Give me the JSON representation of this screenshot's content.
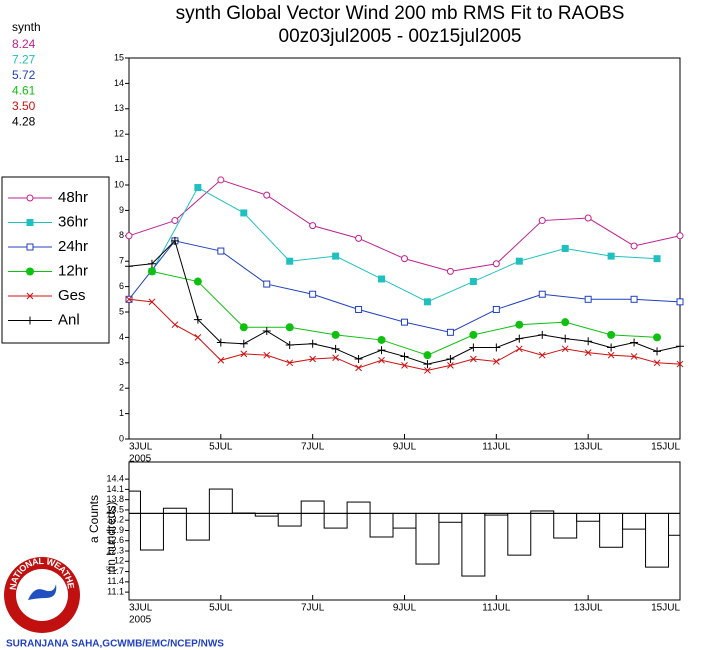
{
  "chart_data": [
    {
      "type": "line",
      "title": "synth Global Vector Wind 200 mb RMS Fit to RAOBS",
      "subtitle": "00z03jul2005 - 00z15jul2005",
      "stats_label": "synth",
      "xlim": [
        0,
        12
      ],
      "xticks": [
        {
          "value": 0,
          "label": "3JUL"
        },
        {
          "value": 2,
          "label": "5JUL"
        },
        {
          "value": 4,
          "label": "7JUL"
        },
        {
          "value": 6,
          "label": "9JUL"
        },
        {
          "value": 8,
          "label": "11JUL"
        },
        {
          "value": 10,
          "label": "13JUL"
        },
        {
          "value": 12,
          "label": "15JUL"
        }
      ],
      "x_year": "2005",
      "ylim": [
        0,
        15
      ],
      "yticks": [
        0,
        1,
        2,
        3,
        4,
        5,
        6,
        7,
        8,
        9,
        10,
        11,
        12,
        13,
        14,
        15
      ],
      "series": [
        {
          "name": "48hr",
          "color": "#c0208f",
          "marker": "open-circle",
          "mean_label": "8.24",
          "x": [
            0,
            1,
            2,
            3,
            4,
            5,
            6,
            7,
            8,
            9,
            10,
            11,
            12
          ],
          "values": [
            8.0,
            8.6,
            10.2,
            9.6,
            8.4,
            7.9,
            7.1,
            6.6,
            6.9,
            8.6,
            8.7,
            7.6,
            8.0
          ]
        },
        {
          "name": "36hr",
          "color": "#20c0c0",
          "marker": "filled-square",
          "mean_label": "7.27",
          "x": [
            0.5,
            1.5,
            2.5,
            3.5,
            4.5,
            5.5,
            6.5,
            7.5,
            8.5,
            9.5,
            10.5,
            11.5
          ],
          "values": [
            6.6,
            9.9,
            8.9,
            7.0,
            7.2,
            6.3,
            5.4,
            6.2,
            7.0,
            7.5,
            7.2,
            7.1
          ]
        },
        {
          "name": "24hr",
          "color": "#2040c0",
          "marker": "open-square",
          "mean_label": "5.72",
          "x": [
            0,
            1,
            2,
            3,
            4,
            5,
            6,
            7,
            8,
            9,
            10,
            11,
            12
          ],
          "values": [
            5.5,
            7.8,
            7.4,
            6.1,
            5.7,
            5.1,
            4.6,
            4.2,
            5.1,
            5.7,
            5.5,
            5.5,
            5.4
          ]
        },
        {
          "name": "12hr",
          "color": "#10c010",
          "marker": "filled-circle",
          "mean_label": "4.61",
          "x": [
            0.5,
            1.5,
            2.5,
            3.5,
            4.5,
            5.5,
            6.5,
            7.5,
            8.5,
            9.5,
            10.5,
            11.5
          ],
          "values": [
            6.6,
            6.2,
            4.4,
            4.4,
            4.1,
            3.9,
            3.3,
            4.1,
            4.5,
            4.6,
            4.1,
            4.0
          ]
        },
        {
          "name": "Ges",
          "color": "#d01010",
          "marker": "cross",
          "mean_label": "3.50",
          "x": [
            0,
            0.5,
            1,
            1.5,
            2,
            2.5,
            3,
            3.5,
            4,
            4.5,
            5,
            5.5,
            6,
            6.5,
            7,
            7.5,
            8,
            8.5,
            9,
            9.5,
            10,
            10.5,
            11,
            11.5,
            12
          ],
          "values": [
            5.5,
            5.4,
            4.5,
            4.0,
            3.1,
            3.35,
            3.3,
            3.0,
            3.15,
            3.2,
            2.8,
            3.1,
            2.9,
            2.7,
            2.9,
            3.15,
            3.05,
            3.55,
            3.3,
            3.55,
            3.4,
            3.3,
            3.25,
            3.0,
            2.95
          ]
        },
        {
          "name": "Anl",
          "color": "#000000",
          "marker": "plus",
          "mean_label": "4.28",
          "x": [
            0,
            0.5,
            1,
            1.5,
            2,
            2.5,
            3,
            3.5,
            4,
            4.5,
            5,
            5.5,
            6,
            6.5,
            7,
            7.5,
            8,
            8.5,
            9,
            9.5,
            10,
            10.5,
            11,
            11.5,
            12
          ],
          "values": [
            6.8,
            6.9,
            7.8,
            4.7,
            3.8,
            3.75,
            4.25,
            3.7,
            3.75,
            3.55,
            3.15,
            3.5,
            3.25,
            2.95,
            3.15,
            3.6,
            3.6,
            3.95,
            4.1,
            3.95,
            3.85,
            3.6,
            3.8,
            3.45,
            3.65
          ]
        }
      ]
    },
    {
      "type": "bar",
      "y_label": "a Counts",
      "y_label2": "(in hundreds)",
      "xlim": [
        0,
        12
      ],
      "xticks": [
        {
          "value": 0,
          "label": "3JUL"
        },
        {
          "value": 2,
          "label": "5JUL"
        },
        {
          "value": 4,
          "label": "7JUL"
        },
        {
          "value": 6,
          "label": "9JUL"
        },
        {
          "value": 8,
          "label": "11JUL"
        },
        {
          "value": 10,
          "label": "13JUL"
        },
        {
          "value": 12,
          "label": "15JUL"
        }
      ],
      "x_year": "2005",
      "ylim": [
        10.87,
        14.9
      ],
      "yticks": [
        11.1,
        11.4,
        11.7,
        12,
        12.3,
        12.6,
        12.9,
        13.2,
        13.5,
        13.8,
        14.1,
        14.4
      ],
      "reference": 13.4,
      "x": [
        0,
        0.5,
        1,
        1.5,
        2,
        2.5,
        3,
        3.5,
        4,
        4.5,
        5,
        5.5,
        6,
        6.5,
        7,
        7.5,
        8,
        8.5,
        9,
        9.5,
        10,
        10.5,
        11,
        11.5,
        12
      ],
      "values": [
        14.05,
        12.33,
        13.55,
        12.62,
        14.11,
        13.41,
        13.32,
        13.03,
        13.76,
        12.97,
        13.73,
        12.71,
        12.97,
        11.92,
        13.14,
        11.57,
        13.35,
        12.18,
        13.47,
        12.68,
        13.17,
        12.41,
        12.94,
        11.83,
        12.76
      ]
    }
  ],
  "logo_text": "NATIONAL WEATHER SERVICE",
  "credit": "SURANJANA SAHA,GCWMB/EMC/NCEP/NWS"
}
